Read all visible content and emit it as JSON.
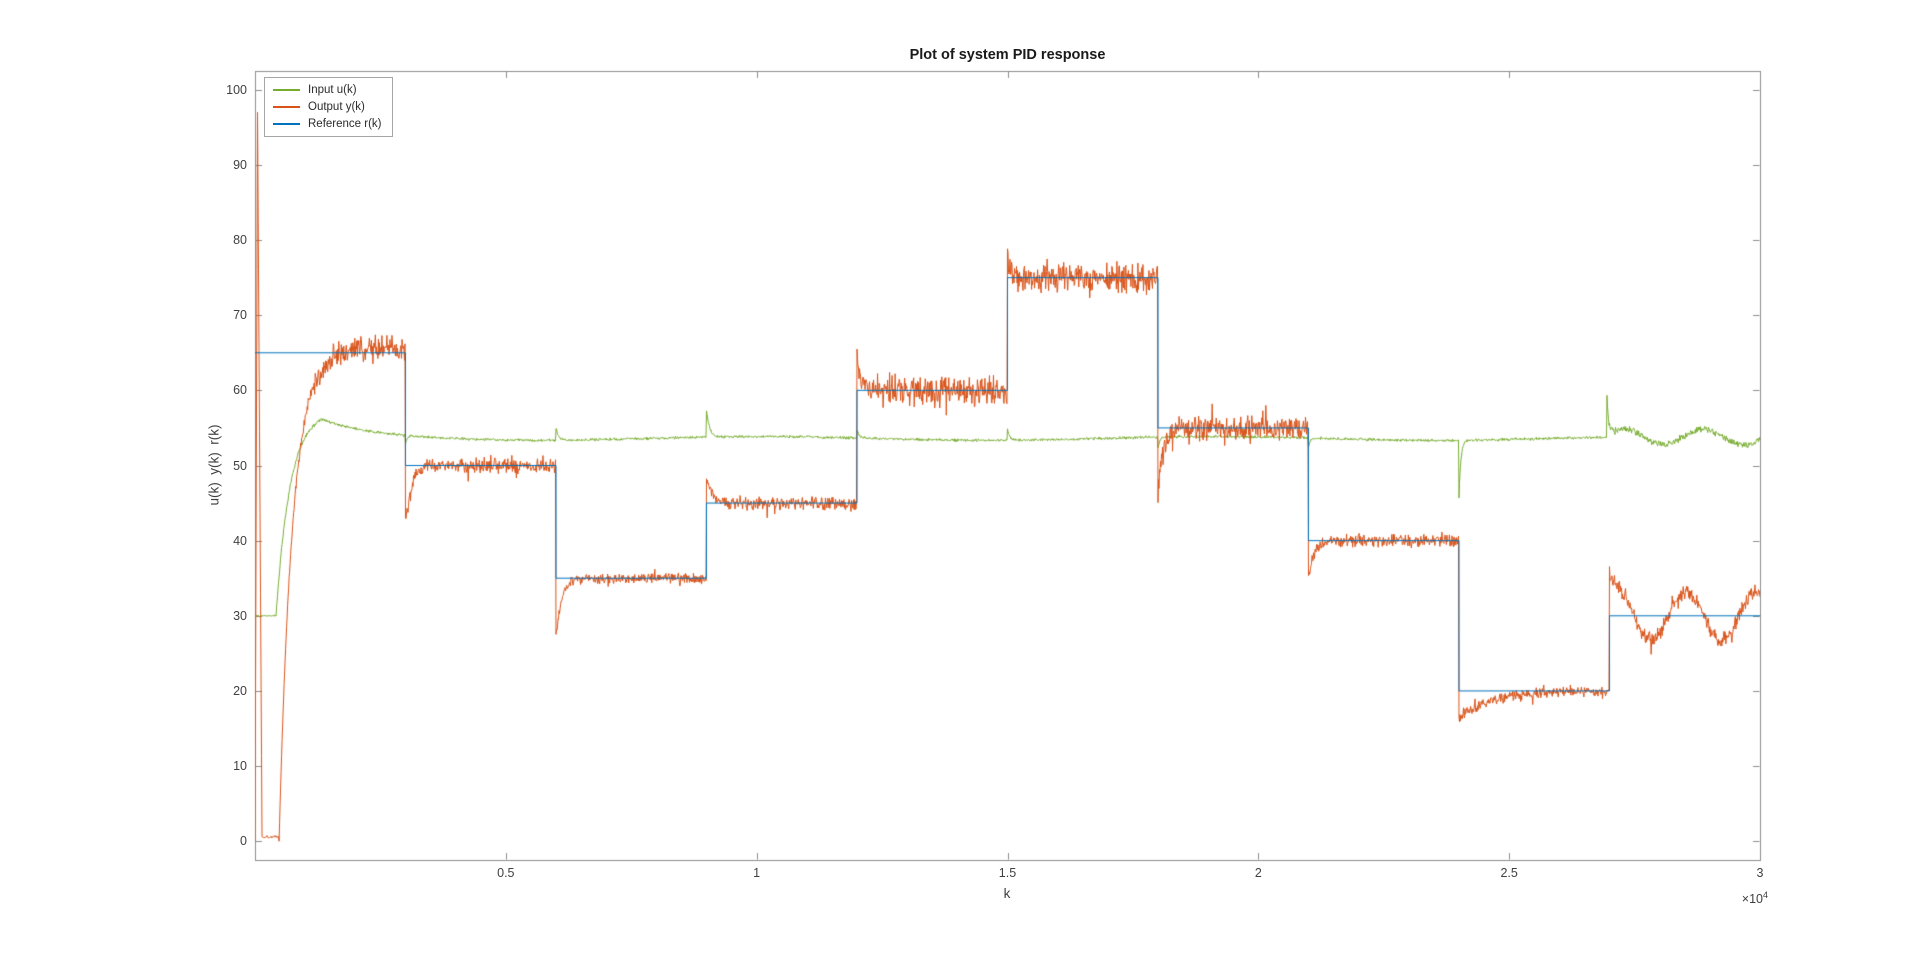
{
  "chart_data": {
    "type": "line",
    "title": "Plot of system PID response",
    "xlabel": "k",
    "ylabel": "u(k)  y(k)  r(k)",
    "x_multiplier_base": "×10",
    "x_multiplier_exp": "4",
    "xlim": [
      0,
      30000
    ],
    "ylim": [
      -2.5,
      102.5
    ],
    "x_ticks": [
      5000,
      10000,
      15000,
      20000,
      25000,
      30000
    ],
    "x_tick_labels": [
      "0.5",
      "1",
      "1.5",
      "2",
      "2.5",
      "3"
    ],
    "y_ticks": [
      0,
      10,
      20,
      30,
      40,
      50,
      60,
      70,
      80,
      90,
      100
    ],
    "y_tick_labels": [
      "0",
      "10",
      "20",
      "30",
      "40",
      "50",
      "60",
      "70",
      "80",
      "90",
      "100"
    ],
    "legend_position": "top-left",
    "grid": false,
    "legend": [
      {
        "label": "Input u(k)",
        "color": "#77AC30",
        "series": "input"
      },
      {
        "label": "Output y(k)",
        "color": "#D95319",
        "series": "output"
      },
      {
        "label": "Reference r(k)",
        "color": "#0072BD",
        "series": "reference"
      }
    ],
    "colors": {
      "axis": "#8c8c8c",
      "tick_label": "#404040",
      "title": "#1a1a1a",
      "background": "#ffffff"
    },
    "sample_step": 10,
    "seed": 1337,
    "reference_steps": [
      {
        "from": 0,
        "to": 3000,
        "value": 65
      },
      {
        "from": 3000,
        "to": 6000,
        "value": 50
      },
      {
        "from": 6000,
        "to": 9000,
        "value": 35
      },
      {
        "from": 9000,
        "to": 12000,
        "value": 45
      },
      {
        "from": 12000,
        "to": 15000,
        "value": 60
      },
      {
        "from": 15000,
        "to": 18000,
        "value": 75
      },
      {
        "from": 18000,
        "to": 21000,
        "value": 55
      },
      {
        "from": 21000,
        "to": 24000,
        "value": 40
      },
      {
        "from": 24000,
        "to": 27000,
        "value": 20
      },
      {
        "from": 27000,
        "to": 30000,
        "value": 30
      }
    ],
    "output_startup": {
      "spike_peak": 97,
      "spike_rise_end": 50,
      "spike_fall_end": 140,
      "low_level": 0.6,
      "rise_start": 480,
      "rise_tau": 260,
      "settle": 1500,
      "settled_bias": 0.6
    },
    "output_segments": [
      {
        "x0": 0,
        "x1": 3000,
        "level": 65,
        "noise": 2.2,
        "startup": true
      },
      {
        "x0": 3000,
        "x1": 6000,
        "level": 50,
        "noise": 1.2,
        "jump": -8,
        "tau": 120
      },
      {
        "x0": 6000,
        "x1": 9000,
        "level": 35,
        "noise": 0.8,
        "jump": -8,
        "tau": 110
      },
      {
        "x0": 9000,
        "x1": 12000,
        "level": 45,
        "noise": 1.1,
        "jump": 4,
        "tau": 120
      },
      {
        "x0": 12000,
        "x1": 15000,
        "level": 60,
        "noise": 2.4,
        "jump": 4,
        "tau": 100
      },
      {
        "x0": 15000,
        "x1": 18000,
        "level": 75,
        "noise": 2.3,
        "jump": 2,
        "tau": 90
      },
      {
        "x0": 18000,
        "x1": 21000,
        "level": 55,
        "noise": 1.9,
        "jump": -9,
        "tau": 90
      },
      {
        "x0": 21000,
        "x1": 24000,
        "level": 40,
        "noise": 1.0,
        "jump": -5,
        "tau": 100
      },
      {
        "x0": 24000,
        "x1": 27000,
        "level": 20,
        "noise": 0.8,
        "jump": -3.5,
        "tau": 650
      },
      {
        "x0": 27000,
        "x1": 30000,
        "level": 30,
        "noise": 1.2,
        "jump": 2,
        "tau": 200,
        "wander": 3.2,
        "wander_period": 1400,
        "wander_phase": 1.0
      }
    ],
    "input_spec": {
      "start_level": 30,
      "start_hold_until": 420,
      "rise_tau": 280,
      "peak": 56,
      "knee": 1300,
      "base": 53.6,
      "settle_tau": 900,
      "noise": 0.22,
      "drift_amp": 0.25,
      "drift_period": 9000,
      "late_start": 27000,
      "late_noise": 0.55,
      "late_wander_amp": 1.0,
      "late_wander_period": 1600,
      "spikes": [
        {
          "x": 3000,
          "amp": -1.2,
          "tau": 40
        },
        {
          "x": 6000,
          "amp": 1.6,
          "tau": 50
        },
        {
          "x": 9000,
          "amp": 3.6,
          "tau": 60
        },
        {
          "x": 12000,
          "amp": 1.2,
          "tau": 40
        },
        {
          "x": 15000,
          "amp": 1.4,
          "tau": 40
        },
        {
          "x": 18000,
          "amp": -1.4,
          "tau": 40
        },
        {
          "x": 21000,
          "amp": -1.2,
          "tau": 40
        },
        {
          "x": 24000,
          "amp": -7.6,
          "tau": 38
        },
        {
          "x": 26950,
          "amp": 5.5,
          "tau": 35
        }
      ]
    }
  }
}
